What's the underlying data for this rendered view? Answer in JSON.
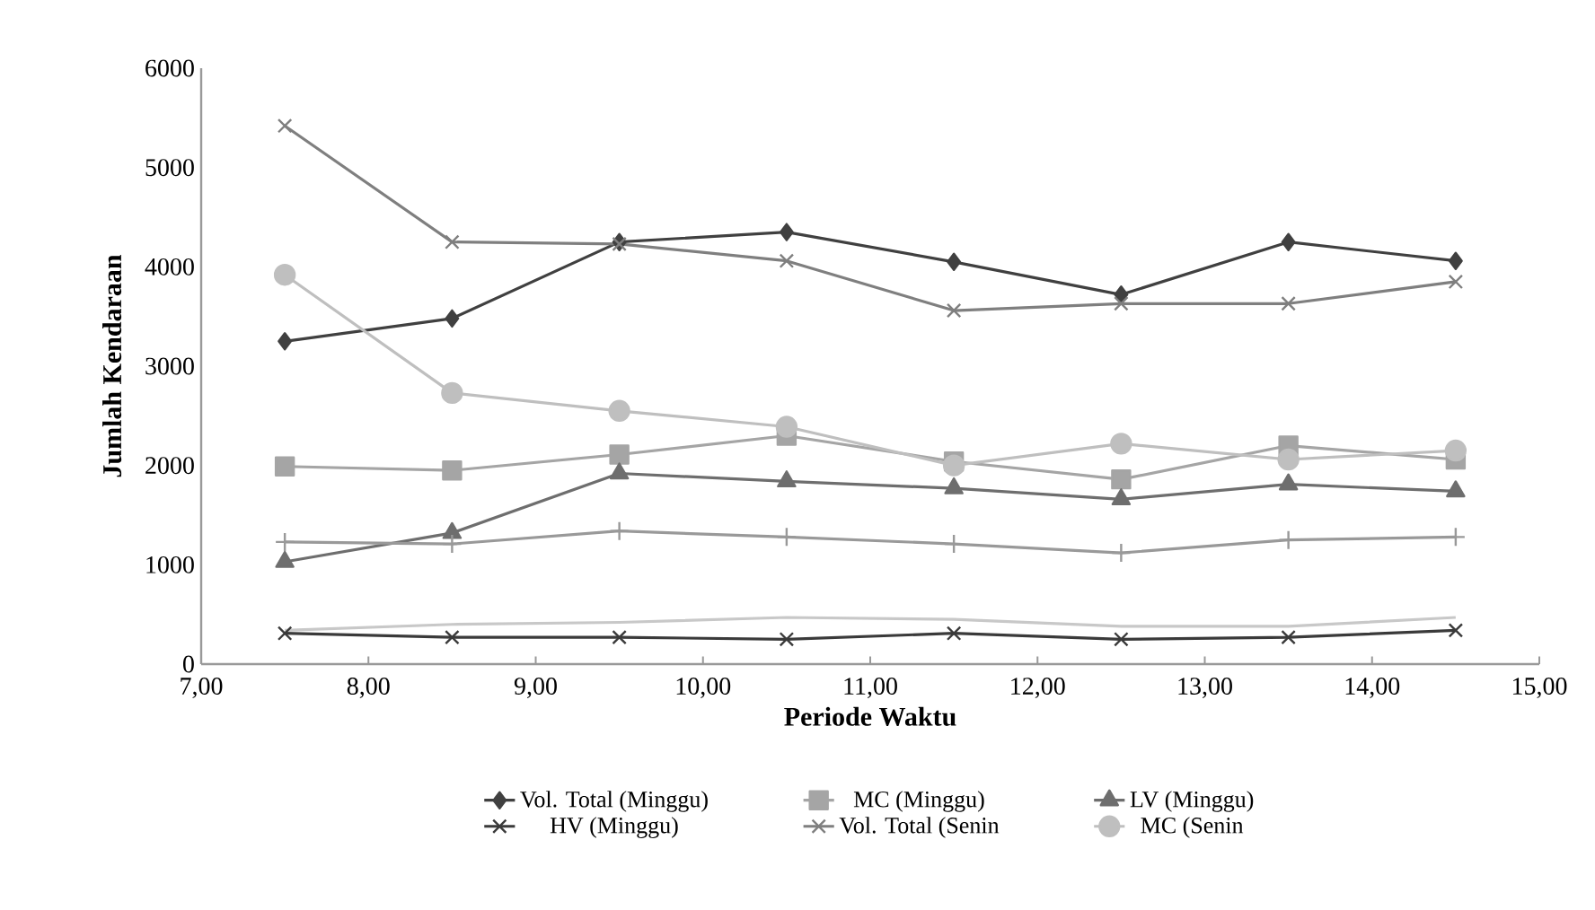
{
  "chart_data": {
    "type": "line",
    "xlabel": "Periode Waktu",
    "ylabel": "Jumlah Kendaraan",
    "x": [
      7.5,
      8.5,
      9.5,
      10.5,
      11.5,
      12.5,
      13.5,
      14.5
    ],
    "xlim": [
      7,
      15
    ],
    "xticks": [
      {
        "value": 7,
        "label": "7,00"
      },
      {
        "value": 8,
        "label": "8,00"
      },
      {
        "value": 9,
        "label": "9,00"
      },
      {
        "value": 10,
        "label": "10,00"
      },
      {
        "value": 11,
        "label": "11,00"
      },
      {
        "value": 12,
        "label": "12,00"
      },
      {
        "value": 13,
        "label": "13,00"
      },
      {
        "value": 14,
        "label": "14,00"
      },
      {
        "value": 15,
        "label": "15,00"
      }
    ],
    "ylim": [
      0,
      6000
    ],
    "yticks": [
      0,
      1000,
      2000,
      3000,
      4000,
      5000,
      6000
    ],
    "grid": false,
    "legend": "bottom",
    "line_style": "solid",
    "series": [
      {
        "name": "Vol. Total (Minggu)",
        "color": "#404040",
        "marker": "diamond",
        "values": [
          3250,
          3480,
          4250,
          4350,
          4050,
          3720,
          4250,
          4060
        ]
      },
      {
        "name": "MC (Minggu)",
        "color": "#a5a5a5",
        "marker": "square",
        "values": [
          1990,
          1950,
          2110,
          2300,
          2040,
          1860,
          2200,
          2060
        ]
      },
      {
        "name": "LV (Minggu)",
        "color": "#6e6e6e",
        "marker": "triangle",
        "values": [
          1030,
          1320,
          1920,
          1840,
          1770,
          1660,
          1810,
          1740
        ]
      },
      {
        "name": "HV (Minggu)",
        "color": "#3a3a3a",
        "marker": "cross",
        "values": [
          310,
          270,
          270,
          250,
          310,
          250,
          270,
          340
        ]
      },
      {
        "name": "Vol. Total (Senin",
        "color": "#7f7f7f",
        "marker": "cross",
        "values": [
          5420,
          4250,
          4230,
          4060,
          3560,
          3630,
          3630,
          3850
        ]
      },
      {
        "name": "MC (Senin",
        "color": "#bfbfbf",
        "marker": "circle",
        "values": [
          3920,
          2730,
          2550,
          2390,
          2000,
          2220,
          2060,
          2150
        ]
      },
      {
        "color": "#999999",
        "marker": "plus",
        "values": [
          1230,
          1210,
          1340,
          1280,
          1210,
          1120,
          1250,
          1280
        ]
      },
      {
        "color": "#c8c8c8",
        "marker": "none",
        "values": [
          340,
          400,
          420,
          470,
          450,
          380,
          380,
          470
        ]
      }
    ]
  }
}
